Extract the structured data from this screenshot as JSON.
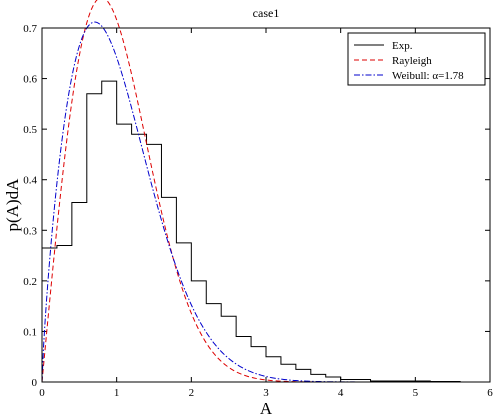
{
  "chart_data": {
    "type": "line",
    "title": "case1",
    "xlabel": "A",
    "ylabel": "p(A)dA",
    "xlim": [
      0,
      6
    ],
    "ylim": [
      0,
      0.7
    ],
    "xticks": [
      "0",
      "1",
      "2",
      "3",
      "4",
      "5",
      "6"
    ],
    "yticks": [
      "0",
      "0.1",
      "0.2",
      "0.3",
      "0.4",
      "0.5",
      "0.6",
      "0.7"
    ],
    "grid": false,
    "legend_position": "top-right",
    "series": [
      {
        "name": "Exp.",
        "style": "solid-step",
        "color": "#000000",
        "bin_edges": [
          0,
          0.2,
          0.4,
          0.6,
          0.8,
          1.0,
          1.2,
          1.4,
          1.6,
          1.8,
          2.0,
          2.2,
          2.4,
          2.6,
          2.8,
          3.0,
          3.2,
          3.4,
          3.6,
          3.8,
          4.0,
          4.2,
          4.4,
          4.6,
          4.8,
          5.0,
          5.2,
          5.4,
          5.6,
          5.8,
          6.0
        ],
        "values": [
          0.265,
          0.27,
          0.355,
          0.57,
          0.595,
          0.51,
          0.49,
          0.47,
          0.365,
          0.275,
          0.2,
          0.155,
          0.13,
          0.09,
          0.07,
          0.05,
          0.035,
          0.025,
          0.015,
          0.01,
          0.005,
          0.005,
          0.002,
          0.002,
          0.002,
          0.002,
          0.001,
          0.001,
          0.0,
          0.0
        ]
      },
      {
        "name": "Rayleigh",
        "style": "dashed",
        "color": "#dd0000"
      },
      {
        "name": "Weibull: α=1.78",
        "style": "dash-dot",
        "color": "#0000cc"
      }
    ]
  }
}
